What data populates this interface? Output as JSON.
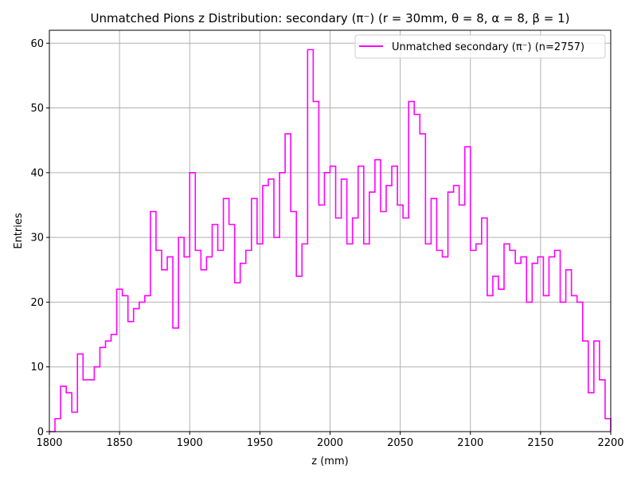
{
  "chart_data": {
    "type": "histogram",
    "title": "Unmatched Pions z Distribution: secondary (π⁻) (r = 30mm, θ = 8, α = 8, β = 1)",
    "xlabel": "z (mm)",
    "ylabel": "Entries",
    "xlim": [
      1800,
      2200
    ],
    "ylim": [
      0,
      62
    ],
    "grid": true,
    "legend_position": "top-right",
    "xticks": [
      1800,
      1850,
      1900,
      1950,
      2000,
      2050,
      2100,
      2150,
      2200
    ],
    "yticks": [
      0,
      10,
      20,
      30,
      40,
      50,
      60
    ],
    "series": [
      {
        "name": "Unmatched secondary (π⁻) (n=2757)",
        "color": "#ff00ff",
        "bin_start": 1800,
        "bin_width": 4,
        "values": [
          0,
          2,
          7,
          6,
          3,
          12,
          8,
          8,
          10,
          13,
          14,
          15,
          22,
          21,
          17,
          19,
          20,
          21,
          34,
          28,
          25,
          27,
          16,
          30,
          27,
          40,
          28,
          25,
          27,
          32,
          28,
          36,
          32,
          23,
          26,
          28,
          36,
          29,
          38,
          39,
          30,
          40,
          46,
          34,
          24,
          29,
          59,
          51,
          35,
          40,
          41,
          33,
          39,
          29,
          33,
          41,
          29,
          37,
          42,
          34,
          38,
          41,
          35,
          33,
          51,
          49,
          46,
          29,
          36,
          28,
          27,
          37,
          38,
          35,
          44,
          28,
          29,
          33,
          21,
          24,
          22,
          29,
          28,
          26,
          27,
          20,
          26,
          27,
          21,
          27,
          28,
          20,
          25,
          21,
          20,
          14,
          6,
          14,
          8,
          2
        ]
      }
    ]
  }
}
